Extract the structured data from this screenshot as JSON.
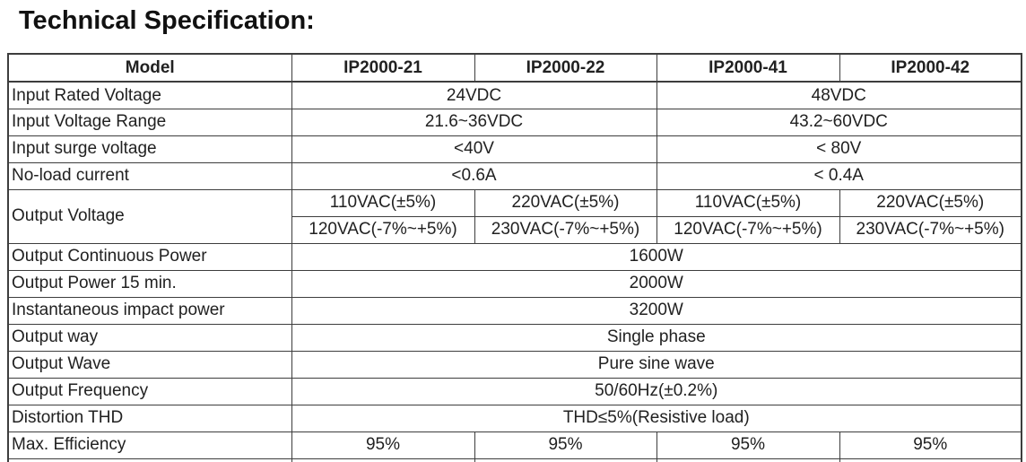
{
  "page": {
    "title": "Technical Specification:"
  },
  "table": {
    "header": {
      "model_label": "Model",
      "models": [
        "IP2000-21",
        "IP2000-22",
        "IP2000-41",
        "IP2000-42"
      ]
    },
    "rows": {
      "input_rated_voltage": {
        "label": "Input Rated Voltage",
        "left": "24VDC",
        "right": "48VDC"
      },
      "input_voltage_range": {
        "label": "Input Voltage Range",
        "left": "21.6~36VDC",
        "right": "43.2~60VDC"
      },
      "input_surge_voltage": {
        "label": "Input surge voltage",
        "left": "<40V",
        "right": "< 80V"
      },
      "no_load_current": {
        "label": "No-load current",
        "left": "<0.6A",
        "right": "< 0.4A"
      },
      "output_voltage": {
        "label": "Output Voltage",
        "nominal": [
          "110VAC(±5%)",
          "220VAC(±5%)",
          "110VAC(±5%)",
          "220VAC(±5%)"
        ],
        "range": [
          "120VAC(-7%~+5%)",
          "230VAC(-7%~+5%)",
          "120VAC(-7%~+5%)",
          "230VAC(-7%~+5%)"
        ]
      },
      "output_continuous_power": {
        "label": "Output Continuous Power",
        "value": "1600W"
      },
      "output_power_15min": {
        "label": "Output Power 15 min.",
        "value": "2000W"
      },
      "instantaneous_impact_power": {
        "label": "Instantaneous impact power",
        "value": "3200W"
      },
      "output_way": {
        "label": "Output way",
        "value": "Single phase"
      },
      "output_wave": {
        "label": "Output Wave",
        "value": "Pure sine wave"
      },
      "output_frequency": {
        "label": "Output Frequency",
        "value": "50/60Hz(±0.2%)"
      },
      "distortion_thd": {
        "label": "Distortion THD",
        "value": "THD≤5%(Resistive load)"
      },
      "max_efficiency": {
        "label": "Max. Efficiency",
        "values": [
          "95%",
          "95%",
          "95%",
          "95%"
        ]
      }
    }
  }
}
